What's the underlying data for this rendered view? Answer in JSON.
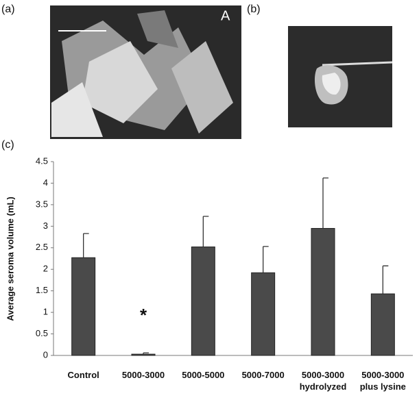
{
  "panels": {
    "a": "(a)",
    "b": "(b)",
    "c": "(c)",
    "inset": "A"
  },
  "chart_data": {
    "type": "bar",
    "ylabel": "Average seroma volume (mL)",
    "categories": [
      "Control",
      "5000-3000",
      "5000-5000",
      "5000-7000",
      "5000-3000\nhydrolyzed",
      "5000-3000\nplus lysine"
    ],
    "values": [
      2.27,
      0.03,
      2.52,
      1.92,
      2.95,
      1.43
    ],
    "errors": [
      0.56,
      0.03,
      0.71,
      0.61,
      1.17,
      0.65
    ],
    "color": "#4a4a4a",
    "ylim": [
      0,
      4.5
    ],
    "yticks": [
      0,
      0.5,
      1,
      1.5,
      2,
      2.5,
      3,
      3.5,
      4,
      4.5
    ],
    "grid": false,
    "annotations": [
      {
        "text": "*",
        "category": 1,
        "y": 1.0
      }
    ]
  }
}
